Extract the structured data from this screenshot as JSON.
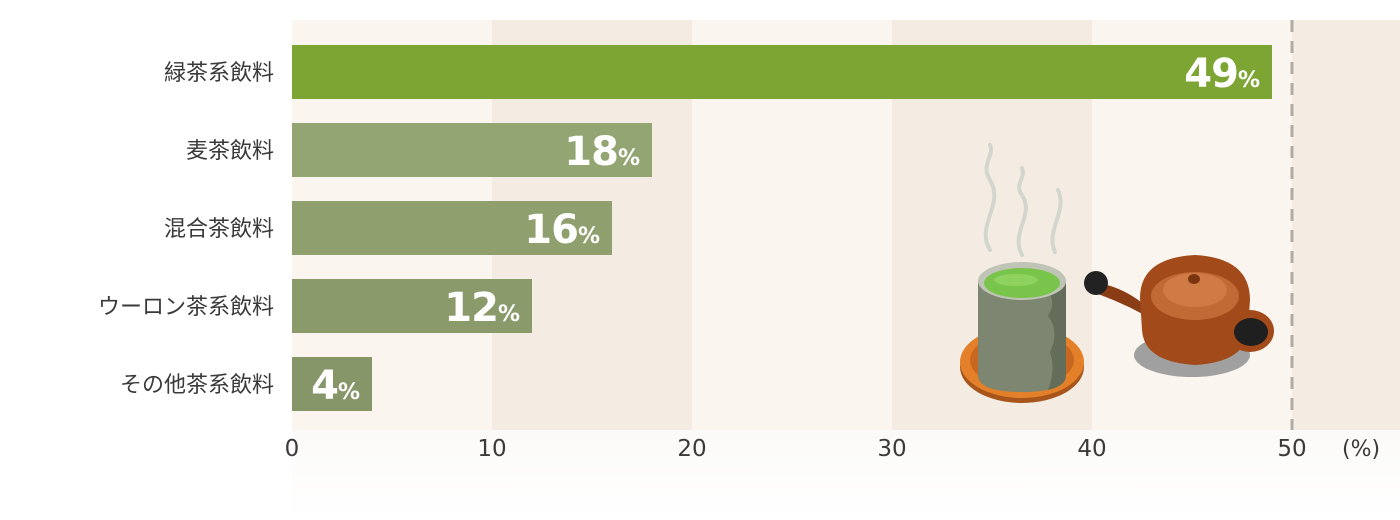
{
  "chart_data": {
    "type": "bar",
    "orientation": "horizontal",
    "categories": [
      "緑茶系飲料",
      "麦茶飲料",
      "混合茶飲料",
      "ウーロン茶系飲料",
      "その他茶系飲料"
    ],
    "values": [
      49,
      18,
      16,
      12,
      4
    ],
    "value_suffix": "%",
    "xlim": [
      0,
      50
    ],
    "xticks": [
      0,
      10,
      20,
      30,
      40,
      50
    ],
    "x_unit_label": "(%)",
    "reference_line_at": 50,
    "colors": {
      "highlight_bar": "#7da534",
      "other_bars": [
        "#93a572",
        "#8fa06e",
        "#8a9a6a",
        "#879668"
      ],
      "band_light": "#faf6ef",
      "band_dark": "#f4ece2",
      "value_text": "#ffffff"
    },
    "decorations": [
      "teacup-icon",
      "teapot-icon"
    ]
  }
}
